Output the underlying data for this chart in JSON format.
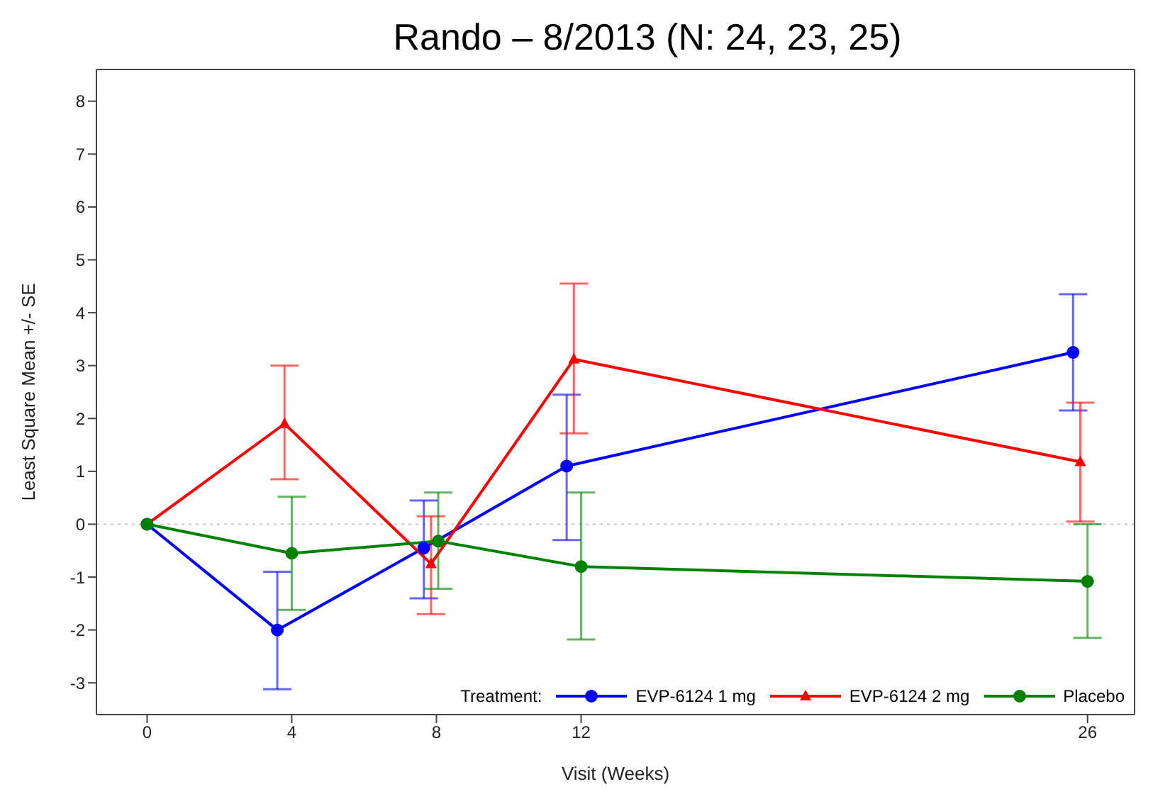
{
  "chart_data": {
    "type": "line",
    "title": "Rando – 8/2013 (N: 24, 23, 25)",
    "xlabel": "Visit (Weeks)",
    "ylabel": "Least Square Mean +/- SE",
    "legend_title": "Treatment:",
    "legend": "bottom right",
    "grid": false,
    "xlim": [
      -1.4,
      27.3
    ],
    "xticks": [
      0,
      4,
      8,
      12,
      26
    ],
    "ylim": [
      -3.6,
      8.6
    ],
    "yticks": [
      -3,
      -2,
      -1,
      0,
      1,
      2,
      3,
      4,
      5,
      6,
      7,
      8
    ],
    "ref_lines": [
      {
        "axis": "y",
        "value": 0,
        "color": "#c8c8c8",
        "line_style": "dotted"
      }
    ],
    "series": [
      {
        "name": "EVP-6124 1 mg",
        "color": "#0000ff",
        "marker": "circle",
        "x": [
          0,
          3.6,
          7.65,
          11.6,
          25.6
        ],
        "values": [
          0,
          -2.0,
          -0.45,
          1.1,
          3.25
        ],
        "errors": [
          null,
          [
            -3.12,
            -0.9
          ],
          [
            -1.4,
            0.45
          ],
          [
            -0.3,
            2.45
          ],
          [
            2.15,
            4.35
          ]
        ]
      },
      {
        "name": "EVP-6124 2 mg",
        "color": "#ff0000",
        "marker": "triangle",
        "x": [
          0,
          3.8,
          7.85,
          11.8,
          25.8
        ],
        "values": [
          0,
          1.9,
          -0.75,
          3.12,
          1.18
        ],
        "errors": [
          null,
          [
            0.85,
            3.0
          ],
          [
            -1.7,
            0.15
          ],
          [
            1.72,
            4.55
          ],
          [
            0.05,
            2.3
          ]
        ]
      },
      {
        "name": "Placebo",
        "color": "#008000",
        "marker": "circle",
        "x": [
          0,
          4,
          8.05,
          12,
          26
        ],
        "values": [
          0,
          -0.55,
          -0.32,
          -0.8,
          -1.08
        ],
        "errors": [
          null,
          [
            -1.62,
            0.52
          ],
          [
            -1.22,
            0.6
          ],
          [
            -2.18,
            0.6
          ],
          [
            -2.15,
            0.0
          ]
        ]
      }
    ]
  }
}
